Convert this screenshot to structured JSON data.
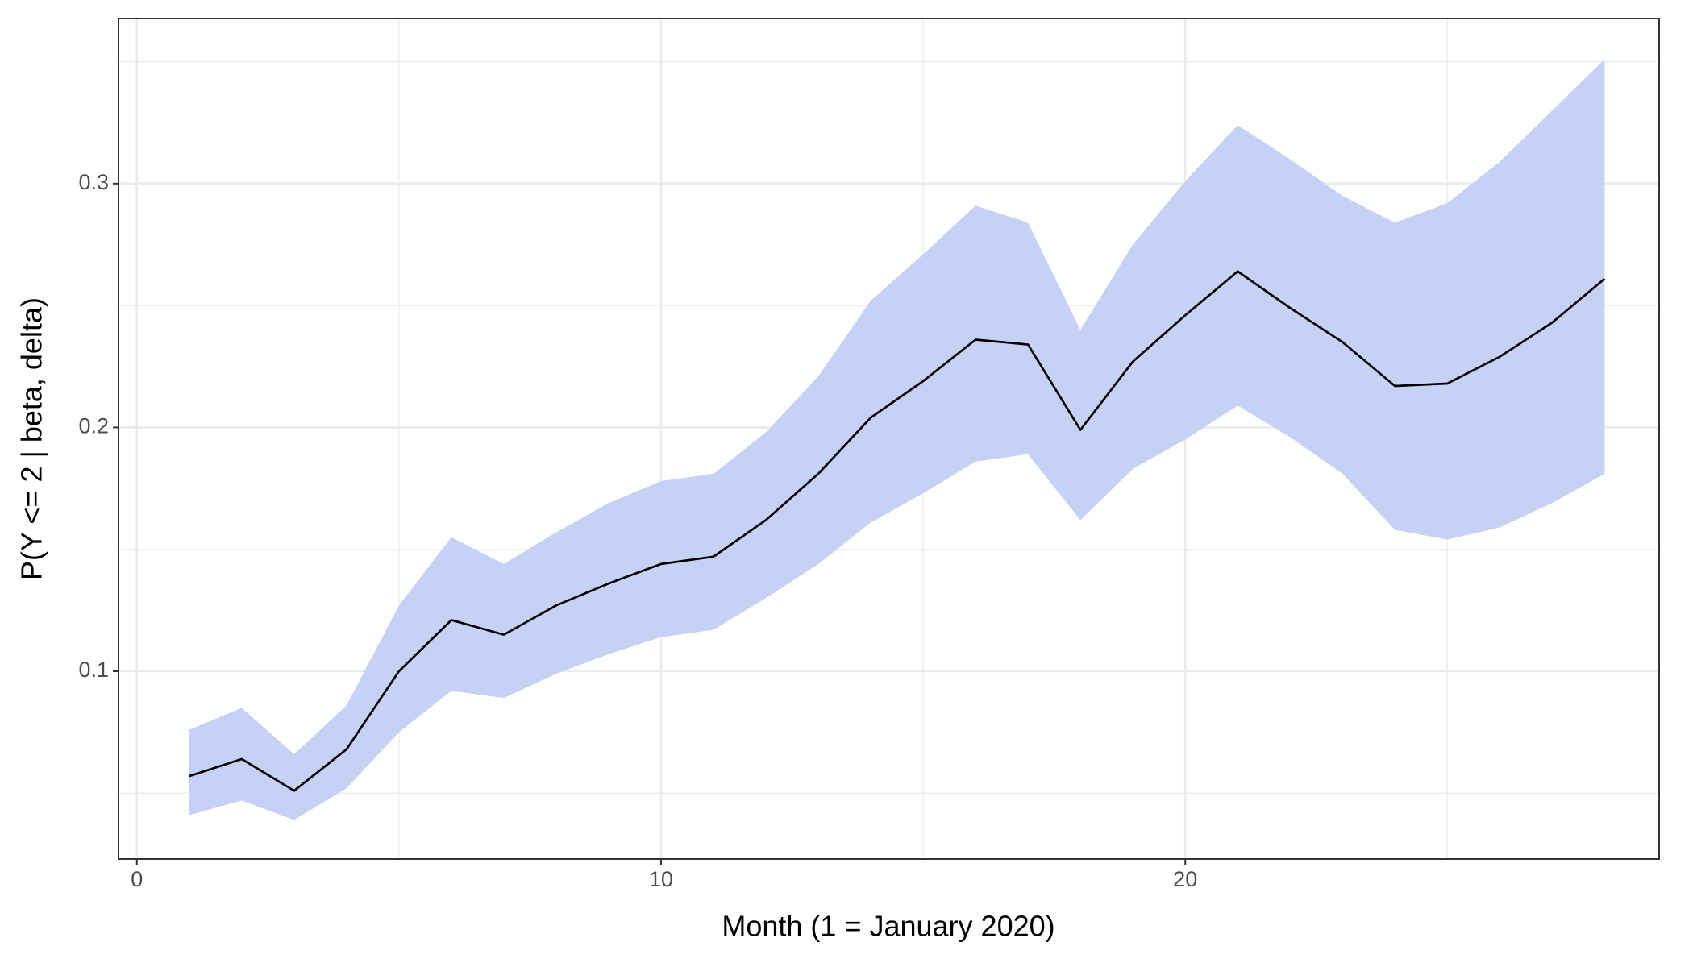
{
  "chart_data": {
    "type": "line",
    "x_label": "Month (1 = January 2020)",
    "y_label": "P(Y <= 2 | beta, delta)",
    "x": [
      1,
      2,
      3,
      4,
      5,
      6,
      7,
      8,
      9,
      10,
      11,
      12,
      13,
      14,
      15,
      16,
      17,
      18,
      19,
      20,
      21,
      22,
      23,
      24,
      25,
      26,
      27,
      28
    ],
    "series": [
      {
        "color": "#000000",
        "values": [
          0.057,
          0.064,
          0.051,
          0.068,
          0.1,
          0.121,
          0.115,
          0.127,
          0.136,
          0.144,
          0.147,
          0.162,
          0.181,
          0.204,
          0.219,
          0.236,
          0.234,
          0.199,
          0.227,
          0.246,
          0.264,
          0.249,
          0.235,
          0.217,
          0.218,
          0.229,
          0.243,
          0.261
        ]
      }
    ],
    "band": {
      "color": "#c6d2f5",
      "lower": [
        0.041,
        0.047,
        0.039,
        0.052,
        0.075,
        0.092,
        0.089,
        0.099,
        0.107,
        0.114,
        0.117,
        0.13,
        0.144,
        0.161,
        0.173,
        0.186,
        0.189,
        0.162,
        0.183,
        0.195,
        0.209,
        0.196,
        0.181,
        0.158,
        0.154,
        0.159,
        0.169,
        0.181
      ],
      "upper": [
        0.076,
        0.085,
        0.066,
        0.086,
        0.127,
        0.155,
        0.144,
        0.157,
        0.169,
        0.178,
        0.181,
        0.198,
        0.221,
        0.252,
        0.271,
        0.291,
        0.284,
        0.24,
        0.275,
        0.301,
        0.324,
        0.31,
        0.295,
        0.284,
        0.292,
        0.309,
        0.33,
        0.351
      ]
    },
    "xlim": [
      -0.35,
      29.04
    ],
    "ylim": [
      0.023,
      0.3677
    ],
    "xticks": [
      0,
      10,
      20
    ],
    "yticks": [
      0.1,
      0.2,
      0.3
    ],
    "minor_xticks": [
      5,
      15,
      25
    ],
    "minor_yticks": [
      0.05,
      0.15,
      0.25,
      0.35
    ],
    "grid": true
  }
}
